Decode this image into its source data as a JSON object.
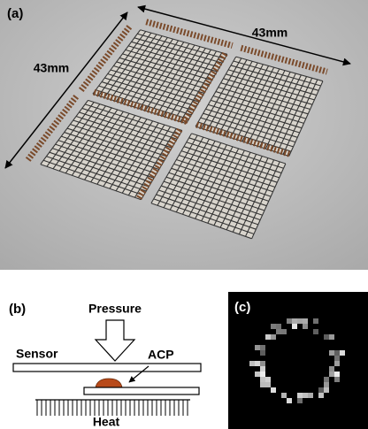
{
  "panel_a": {
    "label": "(a)",
    "width_label": "43mm",
    "height_label": "43mm"
  },
  "panel_b": {
    "label": "(b)",
    "pressure": "Pressure",
    "sensor": "Sensor",
    "acp": "ACP",
    "heat": "Heat"
  },
  "panel_c": {
    "label": "(c)"
  }
}
